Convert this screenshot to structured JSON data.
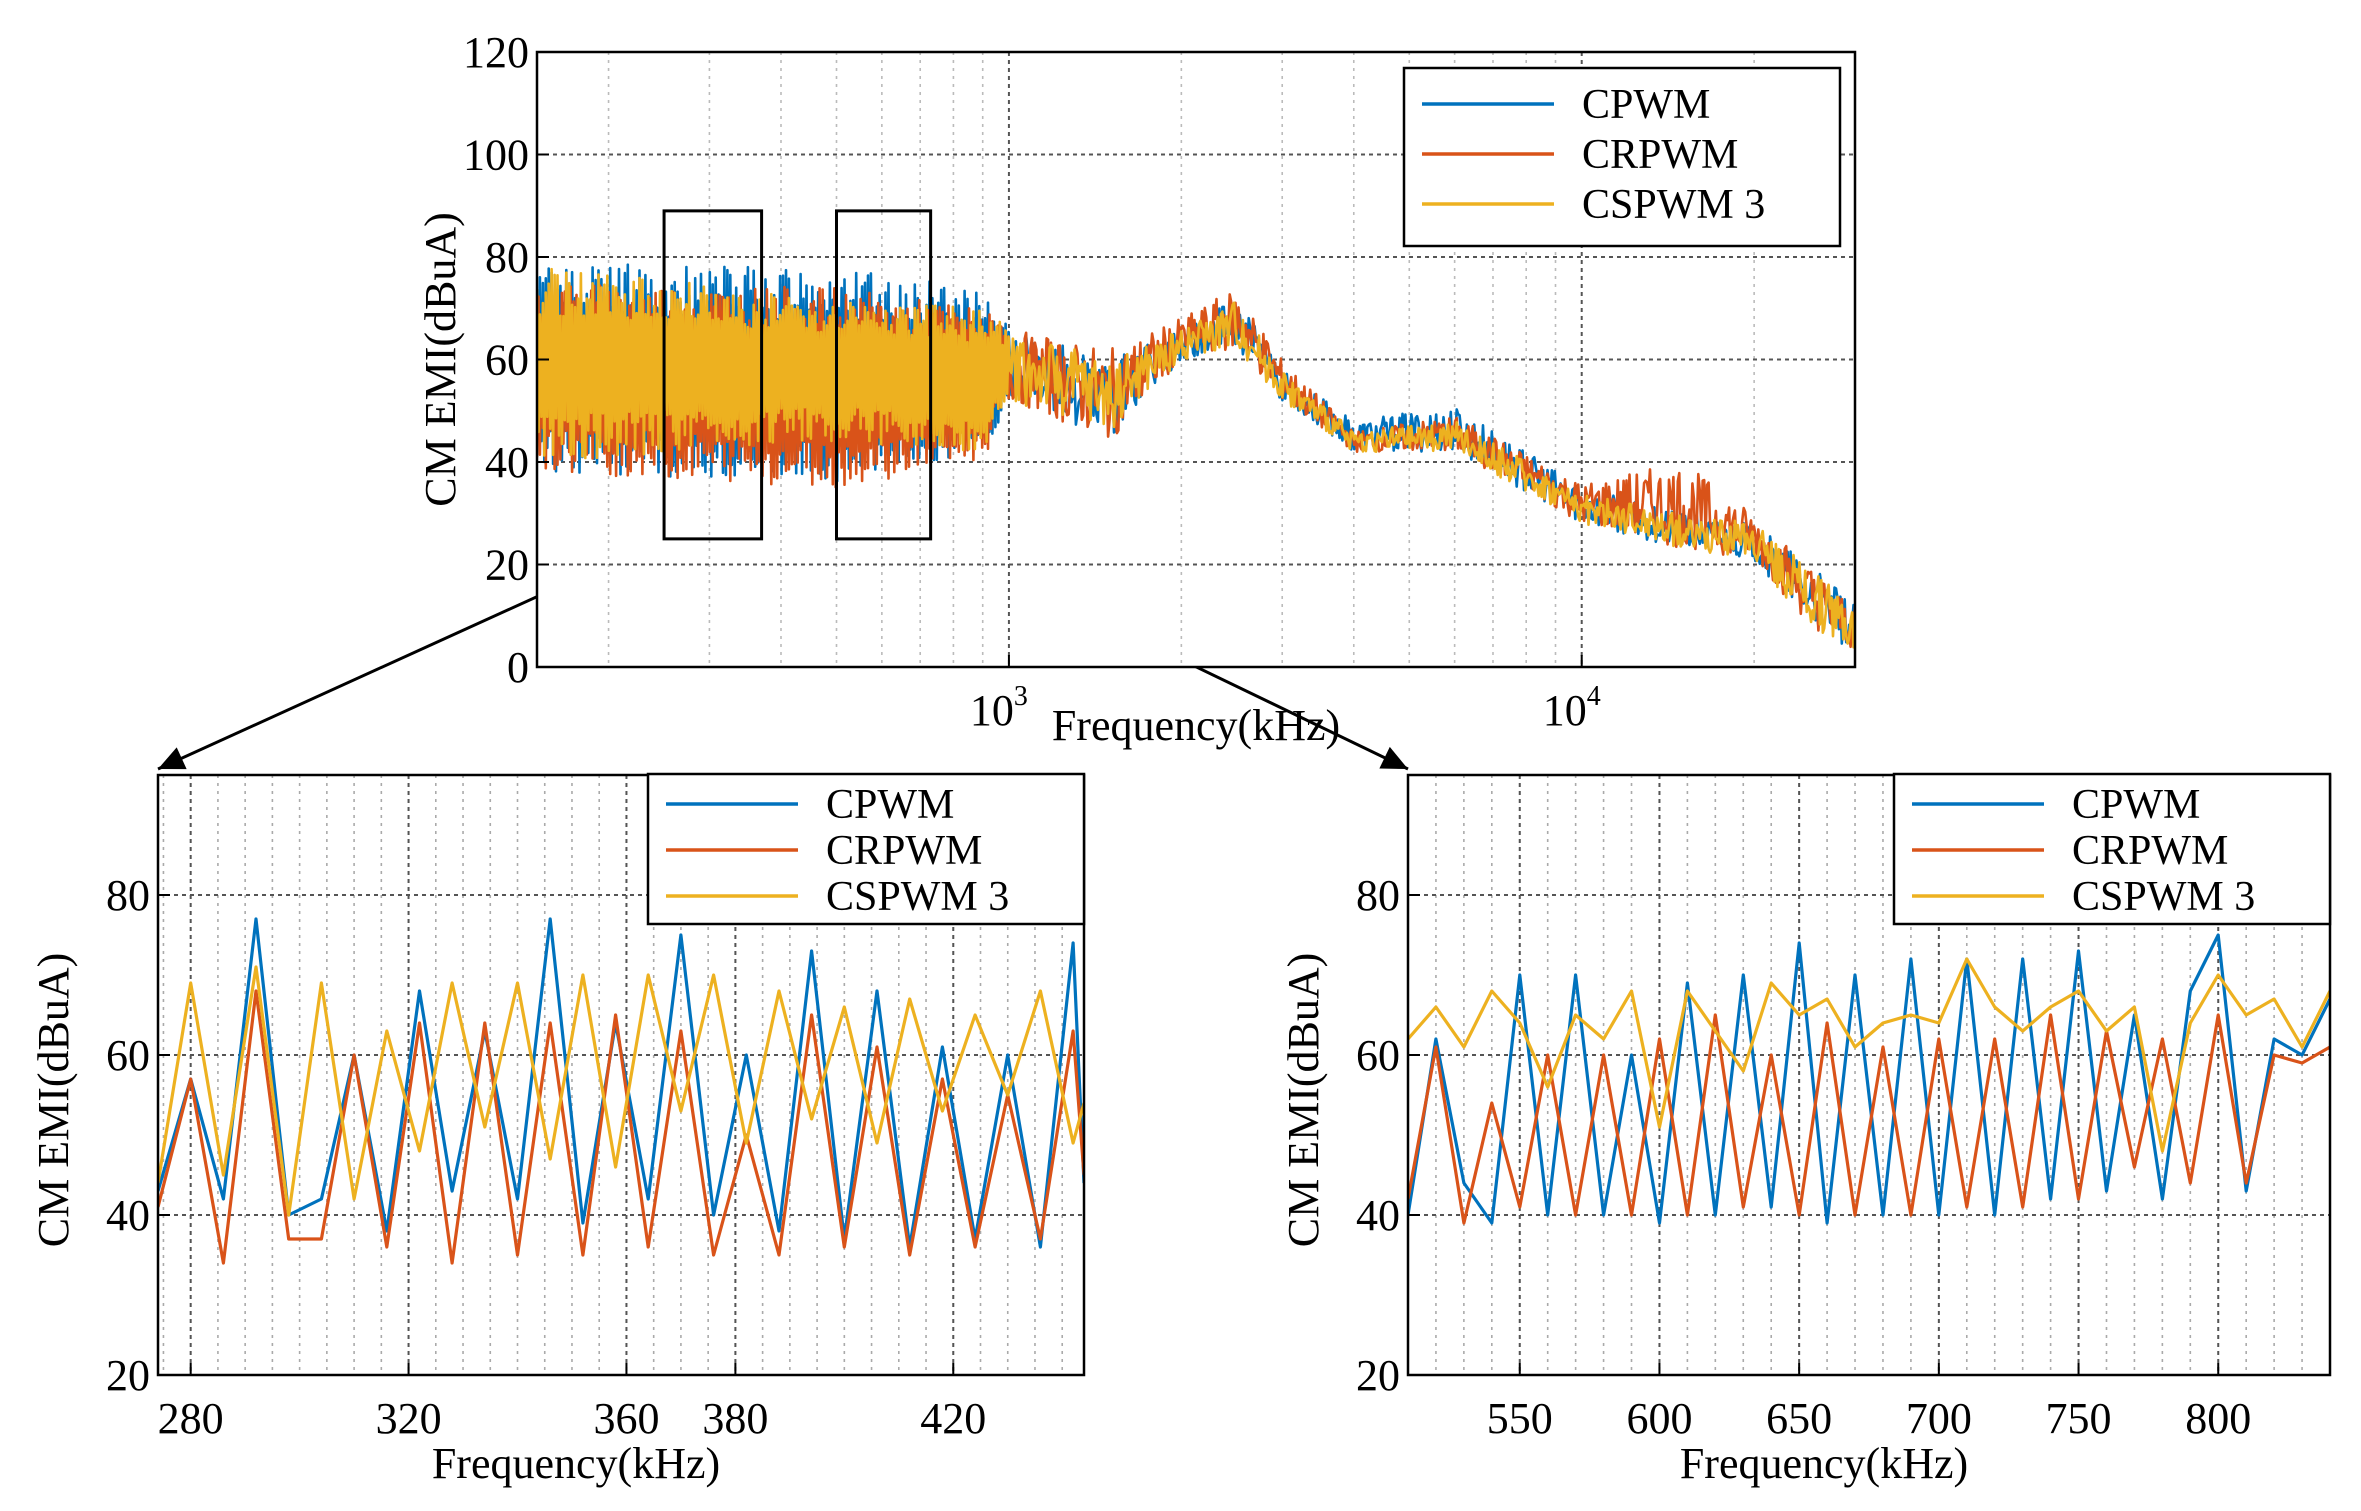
{
  "chart_data": [
    {
      "id": "overview",
      "type": "line",
      "xscale": "log",
      "xlim": [
        150,
        30000
      ],
      "ylim": [
        0,
        120
      ],
      "xticks": [
        {
          "value": 1000,
          "base": "10",
          "exp": "3"
        },
        {
          "value": 10000,
          "base": "10",
          "exp": "4"
        }
      ],
      "yticks": [
        0,
        20,
        40,
        60,
        80,
        100,
        120
      ],
      "xlabel": "Frequency(kHz)",
      "ylabel": "CM EMI(dBuA)",
      "grid": true,
      "legend_position": "top-right",
      "zoom_boxes": [
        {
          "xlim": [
            250,
            370
          ],
          "ylim": [
            25,
            89
          ]
        },
        {
          "xlim": [
            500,
            730
          ],
          "ylim": [
            25,
            89
          ]
        }
      ],
      "series": [
        {
          "name": "CPWM",
          "color": "#0072BD",
          "envelope": {
            "x": [
              150,
              500,
              900,
              1000,
              1500,
              2000,
              2500,
              3000,
              4000,
              6000,
              10000,
              15000,
              20000,
              25000,
              30000
            ],
            "upper": [
              79,
              78,
              74,
              66,
              60,
              66,
              72,
              58,
              48,
              51,
              35,
              30,
              28,
              20,
              12
            ],
            "lower": [
              38,
              36,
              40,
              52,
              44,
              60,
              62,
              52,
              42,
              42,
              28,
              23,
              21,
              8,
              3
            ]
          }
        },
        {
          "name": "CRPWM",
          "color": "#D95319",
          "envelope": {
            "x": [
              150,
              500,
              900,
              1000,
              1500,
              2000,
              2500,
              3000,
              4000,
              6000,
              10000,
              15000,
              20000,
              25000,
              30000
            ],
            "upper": [
              75,
              74,
              70,
              66,
              62,
              68,
              74,
              60,
              46,
              49,
              36,
              40,
              30,
              20,
              12
            ],
            "lower": [
              38,
              35,
              40,
              52,
              44,
              60,
              62,
              52,
              42,
              42,
              28,
              23,
              21,
              8,
              3
            ]
          }
        },
        {
          "name": "CSPWM 3",
          "color": "#EDB120",
          "envelope": {
            "x": [
              150,
              500,
              900,
              1000,
              1500,
              2000,
              2500,
              3000,
              4000,
              6000,
              10000,
              15000,
              20000,
              25000,
              30000
            ],
            "upper": [
              78,
              72,
              70,
              66,
              60,
              66,
              72,
              58,
              46,
              48,
              34,
              30,
              28,
              20,
              12
            ],
            "lower": [
              40,
              44,
              42,
              52,
              46,
              60,
              62,
              52,
              42,
              42,
              28,
              23,
              21,
              8,
              3
            ]
          }
        }
      ]
    },
    {
      "id": "zoom-left",
      "type": "line",
      "xlim": [
        274,
        444
      ],
      "ylim": [
        20,
        95
      ],
      "xticks": [
        280,
        320,
        360,
        380,
        420
      ],
      "yticks": [
        20,
        40,
        60,
        80
      ],
      "xlabel": "Frequency(kHz)",
      "ylabel": "CM EMI(dBuA)",
      "grid": true,
      "legend_position": "top-right",
      "series": [
        {
          "name": "CPWM",
          "color": "#0072BD",
          "x": [
            274,
            280,
            286,
            292,
            298,
            304,
            310,
            316,
            322,
            328,
            334,
            340,
            346,
            352,
            358,
            364,
            370,
            376,
            382,
            388,
            394,
            400,
            406,
            412,
            418,
            424,
            430,
            436,
            442,
            444
          ],
          "y": [
            43,
            57,
            42,
            77,
            40,
            42,
            60,
            38,
            68,
            43,
            63,
            42,
            77,
            39,
            64,
            42,
            75,
            40,
            60,
            38,
            73,
            37,
            68,
            36,
            61,
            37,
            60,
            36,
            74,
            44
          ]
        },
        {
          "name": "CRPWM",
          "color": "#D95319",
          "x": [
            274,
            280,
            286,
            292,
            298,
            304,
            310,
            316,
            322,
            328,
            334,
            340,
            346,
            352,
            358,
            364,
            370,
            376,
            382,
            388,
            394,
            400,
            406,
            412,
            418,
            424,
            430,
            436,
            442,
            444
          ],
          "y": [
            41,
            57,
            34,
            68,
            37,
            37,
            60,
            36,
            64,
            34,
            64,
            35,
            64,
            35,
            65,
            36,
            63,
            35,
            50,
            35,
            65,
            36,
            61,
            35,
            57,
            36,
            55,
            37,
            63,
            45
          ]
        },
        {
          "name": "CSPWM 3",
          "color": "#EDB120",
          "x": [
            274,
            280,
            286,
            292,
            298,
            304,
            310,
            316,
            322,
            328,
            334,
            340,
            346,
            352,
            358,
            364,
            370,
            376,
            382,
            388,
            394,
            400,
            406,
            412,
            418,
            424,
            430,
            436,
            442,
            444
          ],
          "y": [
            44,
            69,
            45,
            71,
            40,
            69,
            42,
            63,
            48,
            69,
            51,
            69,
            47,
            70,
            46,
            70,
            53,
            70,
            49,
            68,
            52,
            66,
            49,
            67,
            53,
            65,
            55,
            68,
            49,
            54
          ]
        }
      ]
    },
    {
      "id": "zoom-right",
      "type": "line",
      "xlim": [
        510,
        840
      ],
      "ylim": [
        20,
        95
      ],
      "xticks": [
        550,
        600,
        650,
        700,
        750,
        800
      ],
      "yticks": [
        20,
        40,
        60,
        80
      ],
      "xlabel": "Frequency(kHz)",
      "ylabel": "CM EMI(dBuA)",
      "grid": true,
      "legend_position": "top-right",
      "series": [
        {
          "name": "CPWM",
          "color": "#0072BD",
          "x": [
            510,
            520,
            530,
            540,
            550,
            560,
            570,
            580,
            590,
            600,
            610,
            620,
            630,
            640,
            650,
            660,
            670,
            680,
            690,
            700,
            710,
            720,
            730,
            740,
            750,
            760,
            770,
            780,
            790,
            800,
            810,
            820,
            830,
            840
          ],
          "y": [
            40,
            62,
            44,
            39,
            70,
            40,
            70,
            40,
            60,
            39,
            69,
            40,
            70,
            41,
            74,
            39,
            70,
            40,
            72,
            40,
            72,
            40,
            72,
            42,
            73,
            43,
            65,
            42,
            68,
            75,
            43,
            62,
            60,
            67
          ]
        },
        {
          "name": "CRPWM",
          "color": "#D95319",
          "x": [
            510,
            520,
            530,
            540,
            550,
            560,
            570,
            580,
            590,
            600,
            610,
            620,
            630,
            640,
            650,
            660,
            670,
            680,
            690,
            700,
            710,
            720,
            730,
            740,
            750,
            760,
            770,
            780,
            790,
            800,
            810,
            820,
            830,
            840
          ],
          "y": [
            42,
            61,
            39,
            54,
            41,
            60,
            40,
            60,
            40,
            62,
            40,
            65,
            41,
            60,
            40,
            64,
            40,
            61,
            40,
            62,
            41,
            62,
            41,
            65,
            42,
            63,
            46,
            62,
            44,
            65,
            44,
            60,
            59,
            61
          ]
        },
        {
          "name": "CSPWM 3",
          "color": "#EDB120",
          "x": [
            510,
            520,
            530,
            540,
            550,
            560,
            570,
            580,
            590,
            600,
            610,
            620,
            630,
            640,
            650,
            660,
            670,
            680,
            690,
            700,
            710,
            720,
            730,
            740,
            750,
            760,
            770,
            780,
            790,
            800,
            810,
            820,
            830,
            840
          ],
          "y": [
            62,
            66,
            61,
            68,
            64,
            56,
            65,
            62,
            68,
            51,
            68,
            63,
            58,
            69,
            65,
            67,
            61,
            64,
            65,
            64,
            72,
            66,
            63,
            66,
            68,
            63,
            66,
            48,
            64,
            70,
            65,
            67,
            61,
            68
          ]
        }
      ]
    }
  ]
}
